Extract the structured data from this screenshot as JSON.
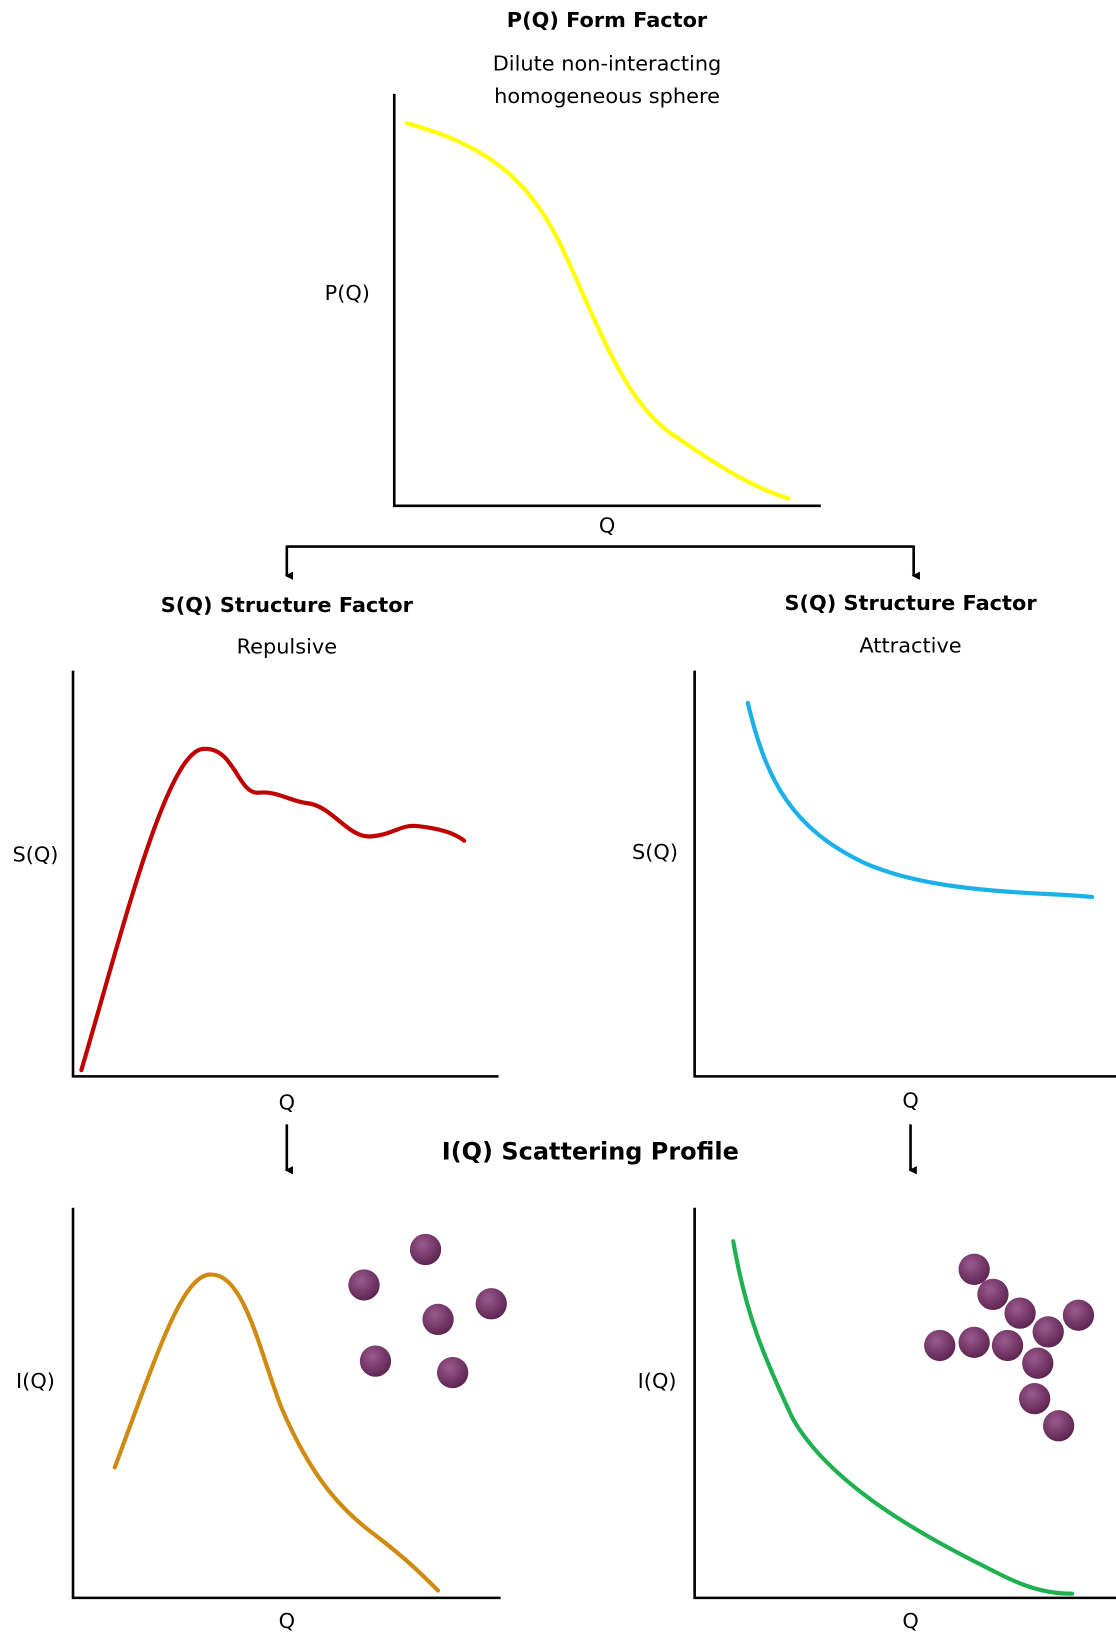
{
  "form_factor": {
    "title": "P(Q) Form Factor",
    "subtitle_lines": [
      "Dilute non-interacting",
      "homogeneous sphere"
    ],
    "y_label": "P(Q)",
    "x_label": "Q"
  },
  "repulsive": {
    "title": "S(Q) Structure Factor",
    "subtitle": "Repulsive",
    "y_label": "S(Q)",
    "x_label": "Q"
  },
  "attractive": {
    "title": "S(Q) Structure Factor",
    "subtitle": "Attractive",
    "y_label": "S(Q)",
    "x_label": "Q"
  },
  "scattering_title": "I(Q) Scattering Profile",
  "repulsive_profile": {
    "y_label": "I(Q)",
    "x_label": "Q"
  },
  "attractive_profile": {
    "y_label": "I(Q)",
    "x_label": "Q"
  }
}
